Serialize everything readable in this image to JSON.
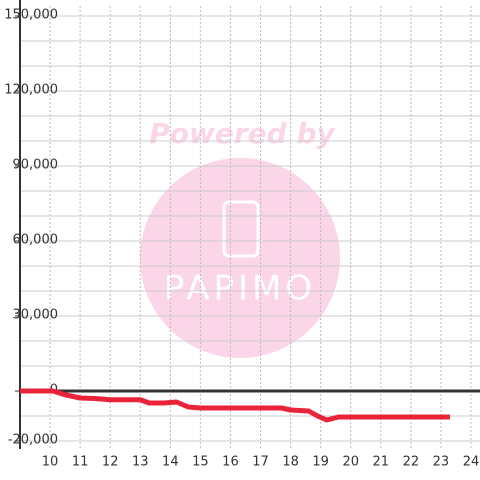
{
  "chart_data": {
    "type": "line",
    "watermark": {
      "line1": "Powered by",
      "line2": "PAPIMO"
    },
    "x": [
      9,
      10.1,
      10.5,
      11,
      11.5,
      12,
      13,
      13.3,
      13.8,
      14.2,
      14.6,
      15,
      17.7,
      18,
      18.6,
      18.9,
      19.2,
      19.6,
      23.3
    ],
    "series": [
      {
        "color": "#e8233a",
        "values": [
          0,
          0,
          -1500,
          -2800,
          -3000,
          -3500,
          -3500,
          -4800,
          -4800,
          -4400,
          -6400,
          -6800,
          -6800,
          -7600,
          -8000,
          -10000,
          -11600,
          -10400,
          -10400
        ]
      }
    ],
    "xlim": [
      9,
      24.3
    ],
    "xticks": [
      10,
      11,
      12,
      13,
      14,
      15,
      16,
      17,
      18,
      19,
      20,
      21,
      22,
      23,
      24
    ],
    "ylim": [
      -20000,
      150000
    ],
    "yticks": [
      {
        "value": -20000,
        "label": "-20,000"
      },
      0,
      {
        "value": 30000,
        "label": "30,000"
      },
      {
        "value": 60000,
        "label": "60,000"
      },
      {
        "value": 90000,
        "label": "90,000"
      },
      {
        "value": 120000,
        "label": "120,000"
      },
      {
        "value": 150000,
        "label": "150,000"
      }
    ],
    "yminor": [
      -10000,
      10000,
      20000,
      40000,
      50000,
      70000,
      80000,
      100000,
      110000,
      130000,
      140000
    ],
    "grid": true
  }
}
